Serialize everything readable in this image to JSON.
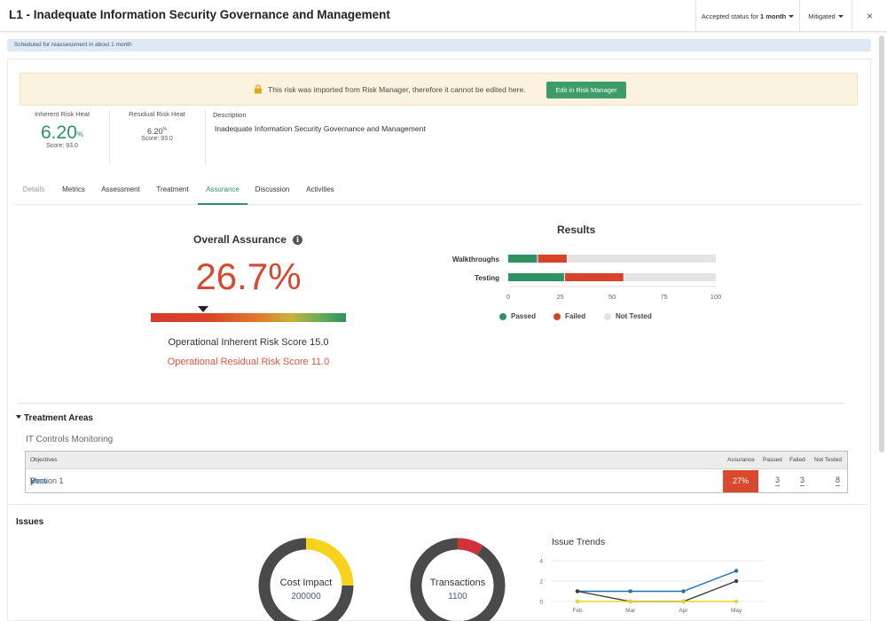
{
  "header": {
    "title": "L1 - Inadequate Information Security Governance and Management",
    "accepted_prefix": "Accepted status for",
    "accepted_value": "1 month",
    "status": "Mitigated",
    "close_label": "×"
  },
  "banner": {
    "text": "Scheduled for reassessment in about 1 month"
  },
  "warning": {
    "message": "This risk was imported from Risk Manager, therefore it cannot be edited here.",
    "button": "Edit in Risk Manager"
  },
  "inherent": {
    "label": "Inherent Risk Heat",
    "value": "6.20",
    "suffix": "%",
    "score": "Score: 93.0"
  },
  "residual": {
    "label": "Residual Risk Heat",
    "value": "6.20",
    "suffix": "%",
    "score": "Score: 93.0"
  },
  "description": {
    "label": "Description",
    "text": "Inadequate Information Security Governance and Management"
  },
  "tabs": [
    "Details",
    "Metrics",
    "Assessment",
    "Treatment",
    "Assurance",
    "Discussion",
    "Activities"
  ],
  "active_tab": "Assurance",
  "overall": {
    "title": "Overall Assurance",
    "percent": "26.7%",
    "level": 0.267,
    "inherent_score": "Operational Inherent Risk Score 15.0",
    "residual_score": "Operational Residual Risk Score 11.0"
  },
  "colors": {
    "passed": "#2f9262",
    "failed": "#d9432b",
    "not_tested": "#e4e4e4",
    "accent": "#2f9262"
  },
  "chart_data": [
    {
      "type": "bar",
      "orientation": "horizontal",
      "stacked": true,
      "title": "Results",
      "categories": [
        "Walkthroughs",
        "Testing"
      ],
      "series": [
        {
          "name": "Passed",
          "values": [
            14.3,
            27.3
          ]
        },
        {
          "name": "Failed",
          "values": [
            14.3,
            28.6
          ]
        },
        {
          "name": "Not Tested",
          "values": [
            71.4,
            44.1
          ]
        }
      ],
      "xlim": [
        0,
        100
      ],
      "xticks": [
        "0",
        "25",
        "50",
        "75",
        "100"
      ],
      "legend": "bottom"
    },
    {
      "type": "pie",
      "donut": true,
      "title": "Cost Impact",
      "center_value": "200000",
      "slices": [
        {
          "name": "",
          "value": 25
        },
        {
          "name": "",
          "value": 75
        }
      ],
      "colors": [
        "#f6d21b",
        "#4a4a4a"
      ]
    },
    {
      "type": "pie",
      "donut": true,
      "title": "Transactions",
      "center_value": "1100",
      "slices": [
        {
          "name": "",
          "value": 9
        },
        {
          "name": "",
          "value": 91
        }
      ],
      "colors": [
        "#d0313c",
        "#4a4a4a"
      ]
    },
    {
      "type": "line",
      "title": "Issue Trends",
      "categories": [
        "Feb",
        "Mar",
        "Apr",
        "May"
      ],
      "yticks": [
        "0",
        "2",
        "4"
      ],
      "ylim": [
        0,
        4
      ],
      "series": [
        {
          "color": "#1f6fb3",
          "values": [
            1,
            1,
            1,
            3
          ]
        },
        {
          "color": "#3c3c3c",
          "values": [
            1,
            0,
            0,
            2
          ]
        },
        {
          "color": "#f2d023",
          "values": [
            0,
            0,
            0,
            0
          ]
        }
      ]
    }
  ],
  "treatment": {
    "title": "Treatment Areas",
    "subtitle": "IT Controls Monitoring",
    "columns": [
      "Objectives",
      "Assurance",
      "Passed",
      "Failed",
      "Not Tested"
    ],
    "rows": [
      {
        "objective": "Section 1",
        "open": "(",
        "view": "View",
        "close": ")",
        "assurance": "27%",
        "passed": "3",
        "failed": "3",
        "not_tested": "8"
      }
    ]
  },
  "issues": {
    "title": "Issues"
  }
}
